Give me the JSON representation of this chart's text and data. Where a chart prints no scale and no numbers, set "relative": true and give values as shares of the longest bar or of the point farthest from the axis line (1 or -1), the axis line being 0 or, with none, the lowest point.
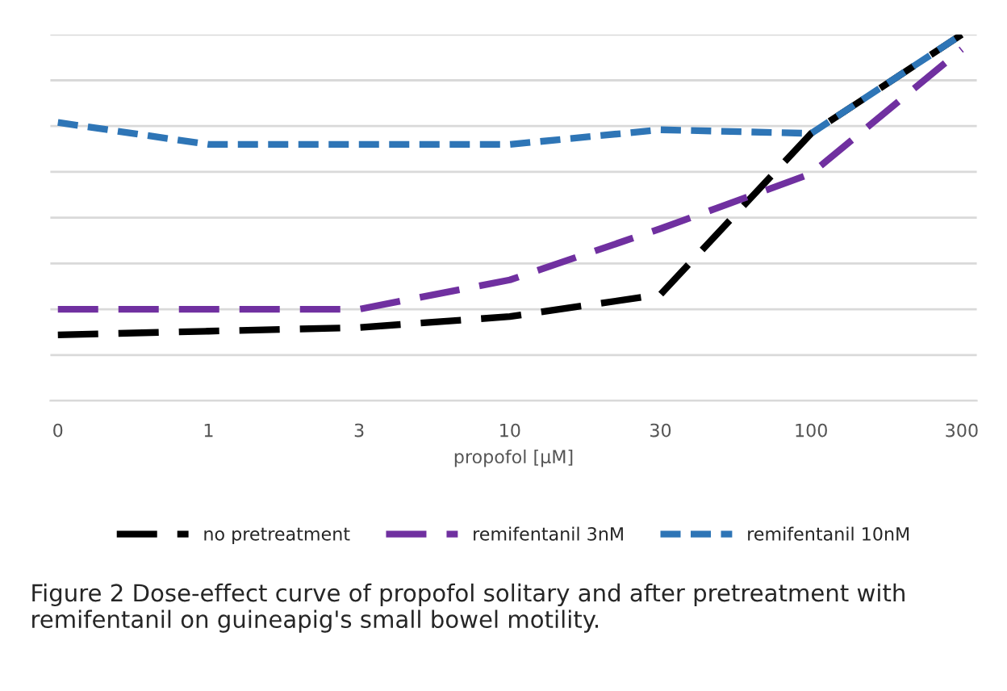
{
  "chart_data": {
    "type": "line",
    "relative": true,
    "xlabel": "propofol [µM]",
    "categories": [
      "0",
      "1",
      "3",
      "10",
      "30",
      "100",
      "300"
    ],
    "series": [
      {
        "name": "no pretreatment",
        "color": "#000000",
        "line_style": "dashed",
        "values": [
          0.18,
          0.19,
          0.2,
          0.23,
          0.29,
          0.73,
          1
        ]
      },
      {
        "name": "remifentanil 3nM",
        "color": "#7030a0",
        "line_style": "dashed",
        "values": [
          0.25,
          0.25,
          0.25,
          0.33,
          0.47,
          0.62,
          0.96
        ]
      },
      {
        "name": "remifentanil 10nM",
        "color": "#2e75b6",
        "line_style": "dotted",
        "values": [
          0.76,
          0.7,
          0.7,
          0.7,
          0.74,
          0.73,
          1
        ]
      }
    ],
    "grid": "y",
    "legend": "bottom",
    "marker": "none",
    "tick_labels": "x",
    "annotations": [
      "Figure 2 Dose-effect curve of propofol solitary and after pretreatment with remifentanil on guineapig's small bowel motility."
    ]
  }
}
